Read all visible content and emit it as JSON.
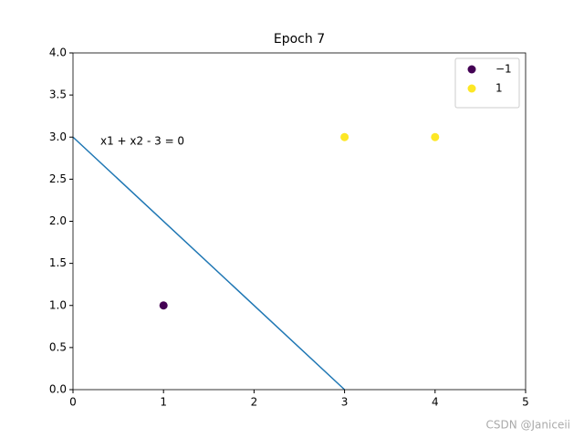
{
  "chart_data": {
    "type": "scatter",
    "title": "Epoch 7",
    "series": [
      {
        "name": "−1",
        "color": "#440154",
        "x": [
          1
        ],
        "values": [
          1
        ]
      },
      {
        "name": "1",
        "color": "#fde725",
        "x": [
          3,
          4
        ],
        "values": [
          3,
          3
        ]
      }
    ],
    "line": {
      "color": "#1f77b4",
      "x": [
        0,
        3
      ],
      "values": [
        3,
        0
      ]
    },
    "annotation": "x1 + x2 - 3 = 0",
    "xlim": [
      0,
      5
    ],
    "xticks": [
      0,
      1,
      2,
      3,
      4,
      5
    ],
    "ylim": [
      0,
      4
    ],
    "yticks": [
      {
        "value": 0,
        "label": "0.0"
      },
      {
        "value": 0.5,
        "label": "0.5"
      },
      {
        "value": 1,
        "label": "1.0"
      },
      {
        "value": 1.5,
        "label": "1.5"
      },
      {
        "value": 2,
        "label": "2.0"
      },
      {
        "value": 2.5,
        "label": "2.5"
      },
      {
        "value": 3,
        "label": "3.0"
      },
      {
        "value": 3.5,
        "label": "3.5"
      },
      {
        "value": 4,
        "label": "4.0"
      }
    ],
    "grid": false,
    "legend": "upper right",
    "watermark": "CSDN @Janiceii"
  }
}
